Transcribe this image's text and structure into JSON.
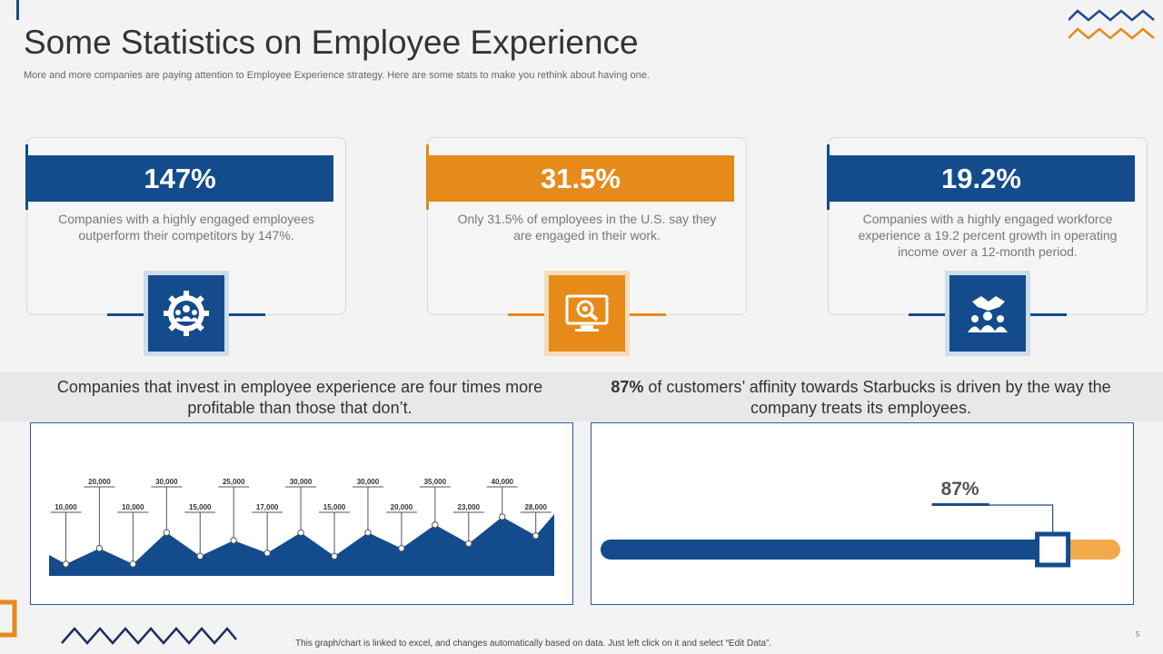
{
  "header": {
    "title": "Some Statistics on Employee Experience",
    "subtitle": "More and more companies are paying attention to Employee Experience strategy. Here are some stats to make you rethink about having one."
  },
  "colors": {
    "blue": "#134b8c",
    "orange": "#e68a1a",
    "light_orange": "#f2a94a"
  },
  "cards": [
    {
      "stat": "147%",
      "text": "Companies with a highly engaged employees outperform their competitors by 147%.",
      "icon": "gear-people-icon",
      "color": "#134b8c"
    },
    {
      "stat": "31.5%",
      "text": "Only 31.5% of employees in the U.S. say they are engaged in their work.",
      "icon": "monitor-search-icon",
      "color": "#e68a1a"
    },
    {
      "stat": "19.2%",
      "text": "Companies with a highly engaged workforce experience a 19.2 percent growth in operating income over a 12-month period.",
      "icon": "handshake-team-icon",
      "color": "#134b8c"
    }
  ],
  "left_panel": {
    "heading": "Companies that invest in employee experience are four times more profitable than those that don’t."
  },
  "right_panel": {
    "heading_bold": "87%",
    "heading_rest": " of customers’ affinity towards Starbucks is driven by the way the company treats its employees.",
    "progress_label": "87%",
    "progress_value": 87
  },
  "chart_data": {
    "type": "area",
    "title": "",
    "values": [
      10000,
      20000,
      10000,
      30000,
      15000,
      25000,
      17000,
      30000,
      15000,
      30000,
      20000,
      35000,
      23000,
      40000,
      28000
    ],
    "labels": [
      "10,000",
      "20,000",
      "10,000",
      "30,000",
      "15,000",
      "25,000",
      "17,000",
      "30,000",
      "15,000",
      "30,000",
      "20,000",
      "35,000",
      "23,000",
      "40,000",
      "28,000"
    ],
    "xlabel": "",
    "ylabel": "",
    "grid": false
  },
  "footer": {
    "note": "This graph/chart is linked to excel,  and changes automatically based on data. Just left click on it and select “Edit Data”.",
    "page": "5"
  }
}
